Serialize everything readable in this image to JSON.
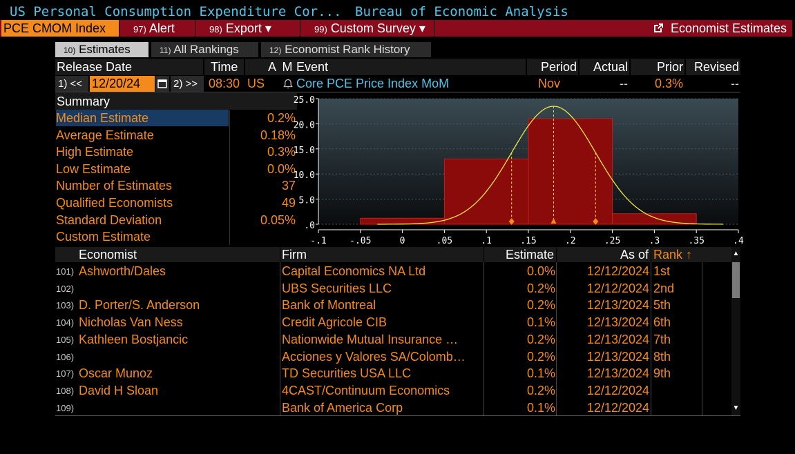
{
  "header": {
    "title_left": "US Personal Consumption Expenditure Cor...",
    "title_right": "Bureau of Economic Analysis"
  },
  "menu": {
    "ticker": "PCE CMOM Index",
    "items": [
      {
        "num": "97)",
        "label": "Alert"
      },
      {
        "num": "98)",
        "label": "Export ▾"
      },
      {
        "num": "99)",
        "label": "Custom Survey ▾"
      }
    ],
    "right_label": "Economist Estimates"
  },
  "tabs": [
    {
      "num": "10)",
      "label": "Estimates"
    },
    {
      "num": "11)",
      "label": "All Rankings"
    },
    {
      "num": "12)",
      "label": "Economist Rank History"
    }
  ],
  "release": {
    "headers": {
      "release_date": "Release Date",
      "time": "Time",
      "a": "A",
      "m": "M",
      "event": "Event",
      "period": "Period",
      "actual": "Actual",
      "prior": "Prior",
      "revised": "Revised"
    },
    "prev_btn": "1) <<",
    "date": "12/20/24",
    "next_btn": "2) >>",
    "time": "08:30",
    "country": "US",
    "event": "Core PCE Price Index MoM",
    "period": "Nov",
    "actual": "--",
    "prior": "0.3%",
    "revised": "--"
  },
  "summary": {
    "title": "Summary",
    "rows": [
      {
        "label": "Median Estimate",
        "value": "0.2%"
      },
      {
        "label": "Average Estimate",
        "value": "0.18%"
      },
      {
        "label": "High Estimate",
        "value": "0.3%"
      },
      {
        "label": "Low Estimate",
        "value": "0.0%"
      },
      {
        "label": "Number of Estimates",
        "value": "37"
      },
      {
        "label": "Qualified Economists",
        "value": "49"
      },
      {
        "label": "Standard Deviation",
        "value": "0.05%"
      },
      {
        "label": "Custom Estimate",
        "value": ""
      }
    ]
  },
  "chart_data": {
    "type": "bar",
    "title": "",
    "xlabel": "",
    "ylabel": "",
    "ylim": [
      0,
      25
    ],
    "xlim": [
      -0.1,
      0.4
    ],
    "y_ticks": [
      "25.0",
      "20.0",
      "15.0",
      "10.0",
      "5.0",
      ".0"
    ],
    "x_ticks": [
      "-.1",
      "-.05",
      "0",
      ".05",
      ".1",
      ".15",
      ".2",
      ".25",
      ".3",
      ".35",
      ".4"
    ],
    "bins": [
      {
        "from": -0.05,
        "to": 0.05,
        "value": 1.2
      },
      {
        "from": 0.05,
        "to": 0.15,
        "value": 13.0
      },
      {
        "from": 0.15,
        "to": 0.25,
        "value": 21.0
      },
      {
        "from": 0.25,
        "to": 0.35,
        "value": 2.1
      }
    ],
    "normal_curve": {
      "mean": 0.18,
      "peak": 23.5,
      "sd": 0.05
    },
    "markers": [
      0.13,
      0.18,
      0.23
    ],
    "grid": true,
    "colors": {
      "bars": "#8b0a0a",
      "curve": "#f0e64a",
      "markers": "#f48a1c"
    }
  },
  "table": {
    "headers": {
      "economist": "Economist",
      "firm": "Firm",
      "estimate": "Estimate",
      "as_of": "As of",
      "rank": "Rank ↑"
    },
    "rows": [
      {
        "num": "101)",
        "economist": "Ashworth/Dales",
        "firm": "Capital Economics NA Ltd",
        "estimate": "0.0%",
        "as_of": "12/12/2024",
        "rank": "1st"
      },
      {
        "num": "102)",
        "economist": "",
        "firm": "UBS Securities LLC",
        "estimate": "0.2%",
        "as_of": "12/12/2024",
        "rank": "2nd"
      },
      {
        "num": "103)",
        "economist": "D. Porter/S. Anderson",
        "firm": "Bank of Montreal",
        "estimate": "0.2%",
        "as_of": "12/13/2024",
        "rank": "5th"
      },
      {
        "num": "104)",
        "economist": "Nicholas Van Ness",
        "firm": "Credit Agricole CIB",
        "estimate": "0.1%",
        "as_of": "12/13/2024",
        "rank": "6th"
      },
      {
        "num": "105)",
        "economist": "Kathleen Bostjancic",
        "firm": "Nationwide Mutual Insurance …",
        "estimate": "0.2%",
        "as_of": "12/13/2024",
        "rank": "7th"
      },
      {
        "num": "106)",
        "economist": "",
        "firm": "Acciones y Valores SA/Colomb…",
        "estimate": "0.2%",
        "as_of": "12/13/2024",
        "rank": "8th"
      },
      {
        "num": "107)",
        "economist": "Oscar Munoz",
        "firm": "TD Securities USA LLC",
        "estimate": "0.1%",
        "as_of": "12/13/2024",
        "rank": "9th"
      },
      {
        "num": "108)",
        "economist": "David H Sloan",
        "firm": "4CAST/Continuum Economics",
        "estimate": "0.2%",
        "as_of": "12/12/2024",
        "rank": ""
      },
      {
        "num": "109)",
        "economist": "",
        "firm": "Bank of America Corp",
        "estimate": "0.1%",
        "as_of": "12/12/2024",
        "rank": ""
      }
    ]
  }
}
